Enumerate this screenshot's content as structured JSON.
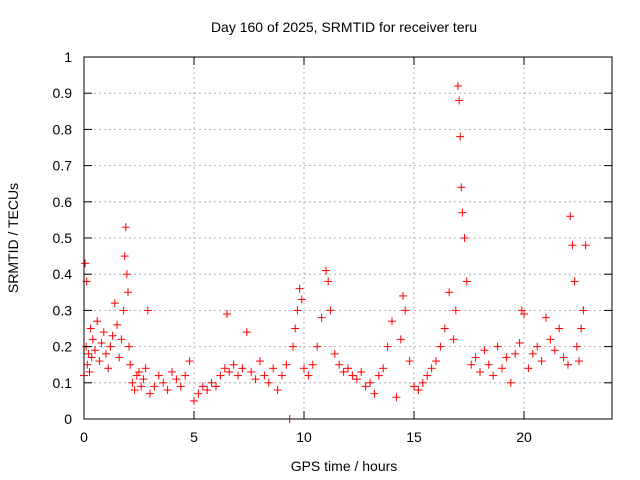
{
  "chart_data": {
    "type": "scatter",
    "title": "Day 160 of 2025, SRMTID for receiver teru",
    "xlabel": "GPS time / hours",
    "ylabel": "SRMTID / TECUs",
    "xlim": [
      0,
      24
    ],
    "ylim": [
      0,
      1
    ],
    "xticks": [
      0,
      5,
      10,
      15,
      20
    ],
    "xtick_labels": [
      "0",
      "5",
      "10",
      "15",
      "20"
    ],
    "yticks": [
      0,
      0.1,
      0.2,
      0.3,
      0.4,
      0.5,
      0.6,
      0.7,
      0.8,
      0.9,
      1
    ],
    "ytick_labels": [
      "0",
      "0.1",
      "0.2",
      "0.3",
      "0.4",
      "0.5",
      "0.6",
      "0.7",
      "0.8",
      "0.9",
      "1"
    ],
    "grid": true,
    "marker": "+",
    "color": "#ff0000",
    "series": [
      {
        "name": "SRMTID",
        "x": [
          0.0,
          0.05,
          0.1,
          0.12,
          0.15,
          0.2,
          0.25,
          0.3,
          0.35,
          0.4,
          0.5,
          0.6,
          0.7,
          0.8,
          0.9,
          1.0,
          1.1,
          1.2,
          1.3,
          1.4,
          1.5,
          1.6,
          1.7,
          1.8,
          1.85,
          1.9,
          1.95,
          2.0,
          2.05,
          2.1,
          2.2,
          2.3,
          2.4,
          2.5,
          2.6,
          2.7,
          2.8,
          2.9,
          3.0,
          3.2,
          3.4,
          3.6,
          3.8,
          4.0,
          4.2,
          4.4,
          4.6,
          4.8,
          5.0,
          5.2,
          5.4,
          5.6,
          5.8,
          6.0,
          6.2,
          6.4,
          6.5,
          6.6,
          6.8,
          7.0,
          7.2,
          7.4,
          7.6,
          7.8,
          8.0,
          8.2,
          8.4,
          8.6,
          8.8,
          9.0,
          9.2,
          9.35,
          9.5,
          9.6,
          9.7,
          9.8,
          9.9,
          10.0,
          10.2,
          10.4,
          10.6,
          10.8,
          11.0,
          11.1,
          11.2,
          11.4,
          11.6,
          11.8,
          12.0,
          12.2,
          12.4,
          12.6,
          12.8,
          13.0,
          13.2,
          13.4,
          13.6,
          13.8,
          14.0,
          14.2,
          14.4,
          14.5,
          14.6,
          14.8,
          15.0,
          15.2,
          15.4,
          15.6,
          15.8,
          16.0,
          16.2,
          16.4,
          16.6,
          16.8,
          16.9,
          17.0,
          17.05,
          17.1,
          17.15,
          17.2,
          17.3,
          17.4,
          17.6,
          17.8,
          18.0,
          18.2,
          18.4,
          18.6,
          18.8,
          19.0,
          19.2,
          19.4,
          19.6,
          19.8,
          19.9,
          20.0,
          20.2,
          20.4,
          20.6,
          20.8,
          21.0,
          21.2,
          21.4,
          21.6,
          21.8,
          22.0,
          22.1,
          22.2,
          22.3,
          22.4,
          22.5,
          22.6,
          22.7,
          22.8
        ],
        "y": [
          0.12,
          0.43,
          0.2,
          0.38,
          0.15,
          0.18,
          0.13,
          0.25,
          0.17,
          0.22,
          0.19,
          0.27,
          0.16,
          0.21,
          0.24,
          0.18,
          0.14,
          0.2,
          0.23,
          0.32,
          0.26,
          0.17,
          0.22,
          0.3,
          0.45,
          0.53,
          0.4,
          0.35,
          0.2,
          0.15,
          0.1,
          0.08,
          0.12,
          0.13,
          0.09,
          0.11,
          0.14,
          0.3,
          0.07,
          0.09,
          0.12,
          0.1,
          0.08,
          0.13,
          0.11,
          0.09,
          0.12,
          0.16,
          0.05,
          0.07,
          0.09,
          0.08,
          0.1,
          0.09,
          0.12,
          0.14,
          0.29,
          0.13,
          0.15,
          0.12,
          0.14,
          0.24,
          0.13,
          0.11,
          0.16,
          0.12,
          0.1,
          0.14,
          0.08,
          0.12,
          0.15,
          0.0,
          0.2,
          0.25,
          0.3,
          0.36,
          0.33,
          0.14,
          0.12,
          0.15,
          0.2,
          0.28,
          0.41,
          0.38,
          0.3,
          0.18,
          0.15,
          0.13,
          0.14,
          0.12,
          0.11,
          0.13,
          0.09,
          0.1,
          0.07,
          0.12,
          0.14,
          0.2,
          0.27,
          0.06,
          0.22,
          0.34,
          0.3,
          0.16,
          0.09,
          0.08,
          0.1,
          0.12,
          0.14,
          0.16,
          0.2,
          0.25,
          0.35,
          0.22,
          0.3,
          0.92,
          0.88,
          0.78,
          0.64,
          0.57,
          0.5,
          0.38,
          0.15,
          0.17,
          0.13,
          0.19,
          0.15,
          0.12,
          0.2,
          0.14,
          0.17,
          0.1,
          0.18,
          0.21,
          0.3,
          0.29,
          0.14,
          0.18,
          0.2,
          0.16,
          0.28,
          0.22,
          0.19,
          0.25,
          0.17,
          0.15,
          0.56,
          0.48,
          0.38,
          0.2,
          0.16,
          0.25,
          0.3,
          0.48
        ]
      }
    ]
  }
}
